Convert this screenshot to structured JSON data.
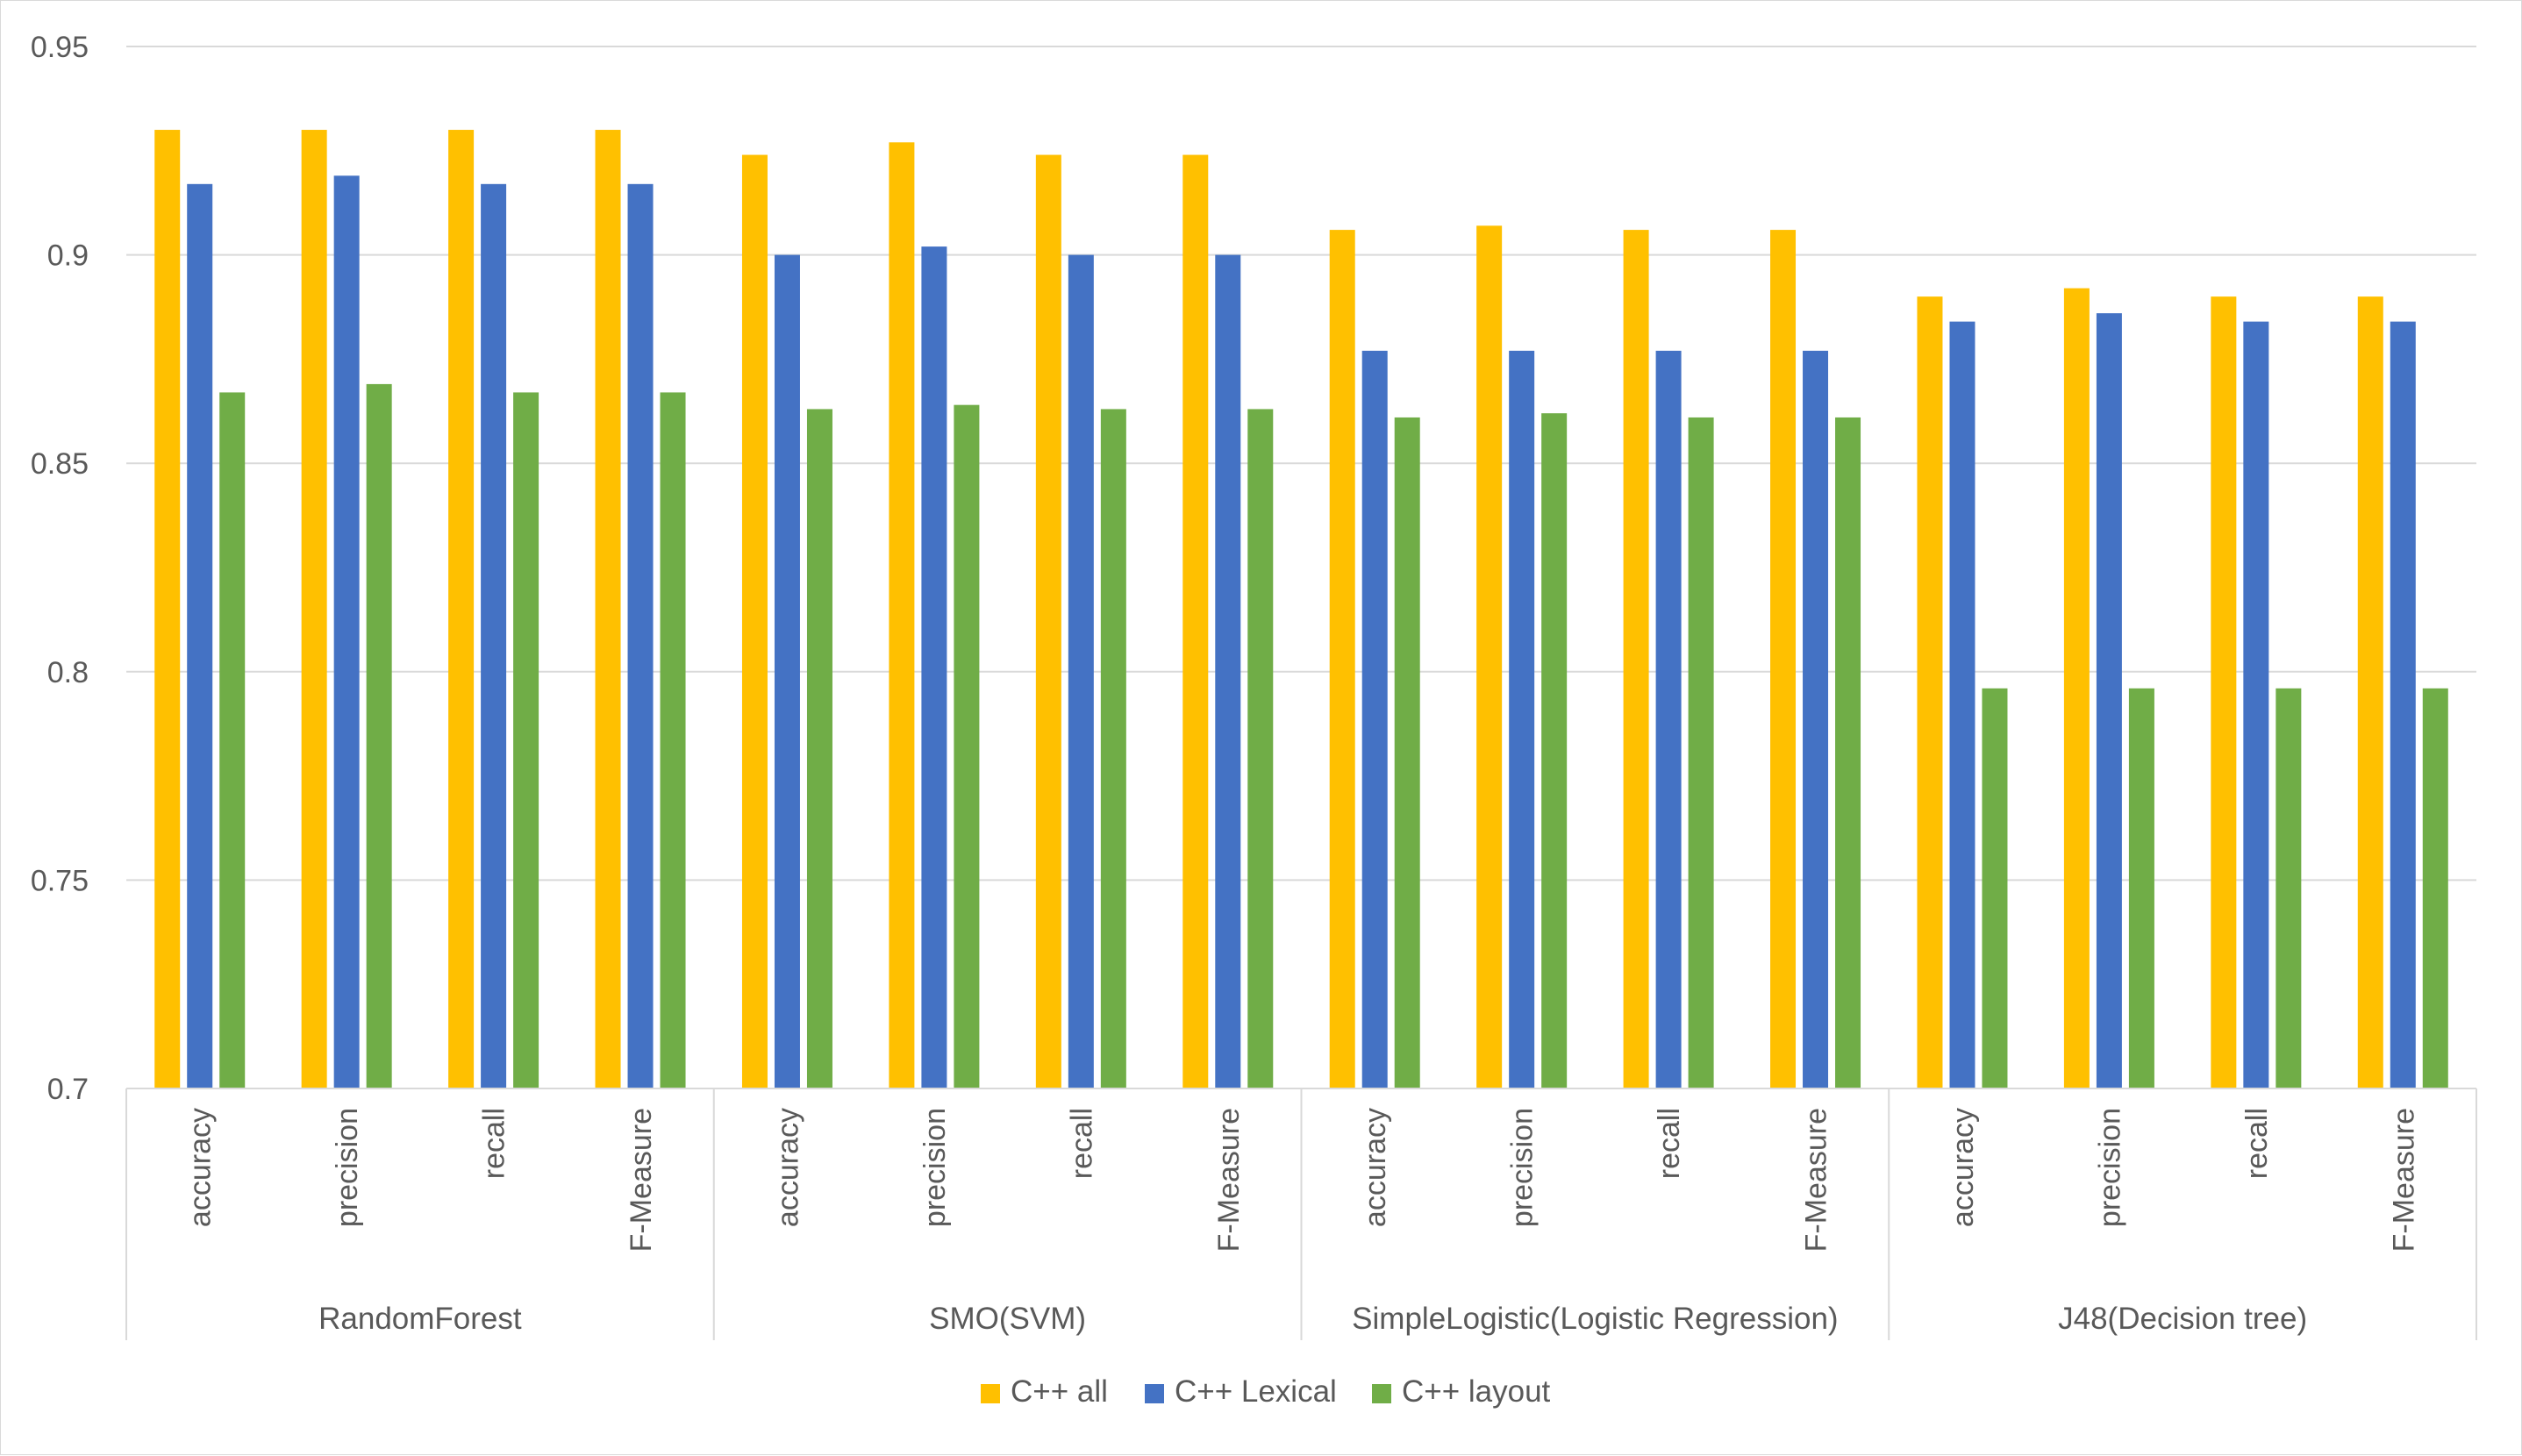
{
  "chart_data": {
    "type": "bar",
    "title": "",
    "xlabel": "",
    "ylabel": "",
    "ylim": [
      0.7,
      0.95
    ],
    "yticks": [
      0.7,
      0.75,
      0.8,
      0.85,
      0.9,
      0.95
    ],
    "ytick_labels": [
      "0.7",
      "0.75",
      "0.8",
      "0.85",
      "0.9",
      "0.95"
    ],
    "grid": true,
    "legend_position": "bottom",
    "groups": [
      {
        "name": "RandomForest",
        "categories": [
          "accuracy",
          "precision",
          "recall",
          "F-Measure"
        ]
      },
      {
        "name": "SMO(SVM)",
        "categories": [
          "accuracy",
          "precision",
          "recall",
          "F-Measure"
        ]
      },
      {
        "name": "SimpleLogistic(Logistic Regression)",
        "categories": [
          "accuracy",
          "precision",
          "recall",
          "F-Measure"
        ]
      },
      {
        "name": "J48(Decision tree)",
        "categories": [
          "accuracy",
          "precision",
          "recall",
          "F-Measure"
        ]
      }
    ],
    "series": [
      {
        "name": "C++ all",
        "color": "#FFC000",
        "values": [
          0.93,
          0.93,
          0.93,
          0.93,
          0.924,
          0.927,
          0.924,
          0.924,
          0.906,
          0.907,
          0.906,
          0.906,
          0.89,
          0.892,
          0.89,
          0.89
        ]
      },
      {
        "name": "C++ Lexical",
        "color": "#4472C4",
        "values": [
          0.917,
          0.919,
          0.917,
          0.917,
          0.9,
          0.902,
          0.9,
          0.9,
          0.877,
          0.877,
          0.877,
          0.877,
          0.884,
          0.886,
          0.884,
          0.884
        ]
      },
      {
        "name": "C++ layout",
        "color": "#70AD47",
        "values": [
          0.867,
          0.869,
          0.867,
          0.867,
          0.863,
          0.864,
          0.863,
          0.863,
          0.861,
          0.862,
          0.861,
          0.861,
          0.796,
          0.796,
          0.796,
          0.796
        ]
      }
    ]
  }
}
